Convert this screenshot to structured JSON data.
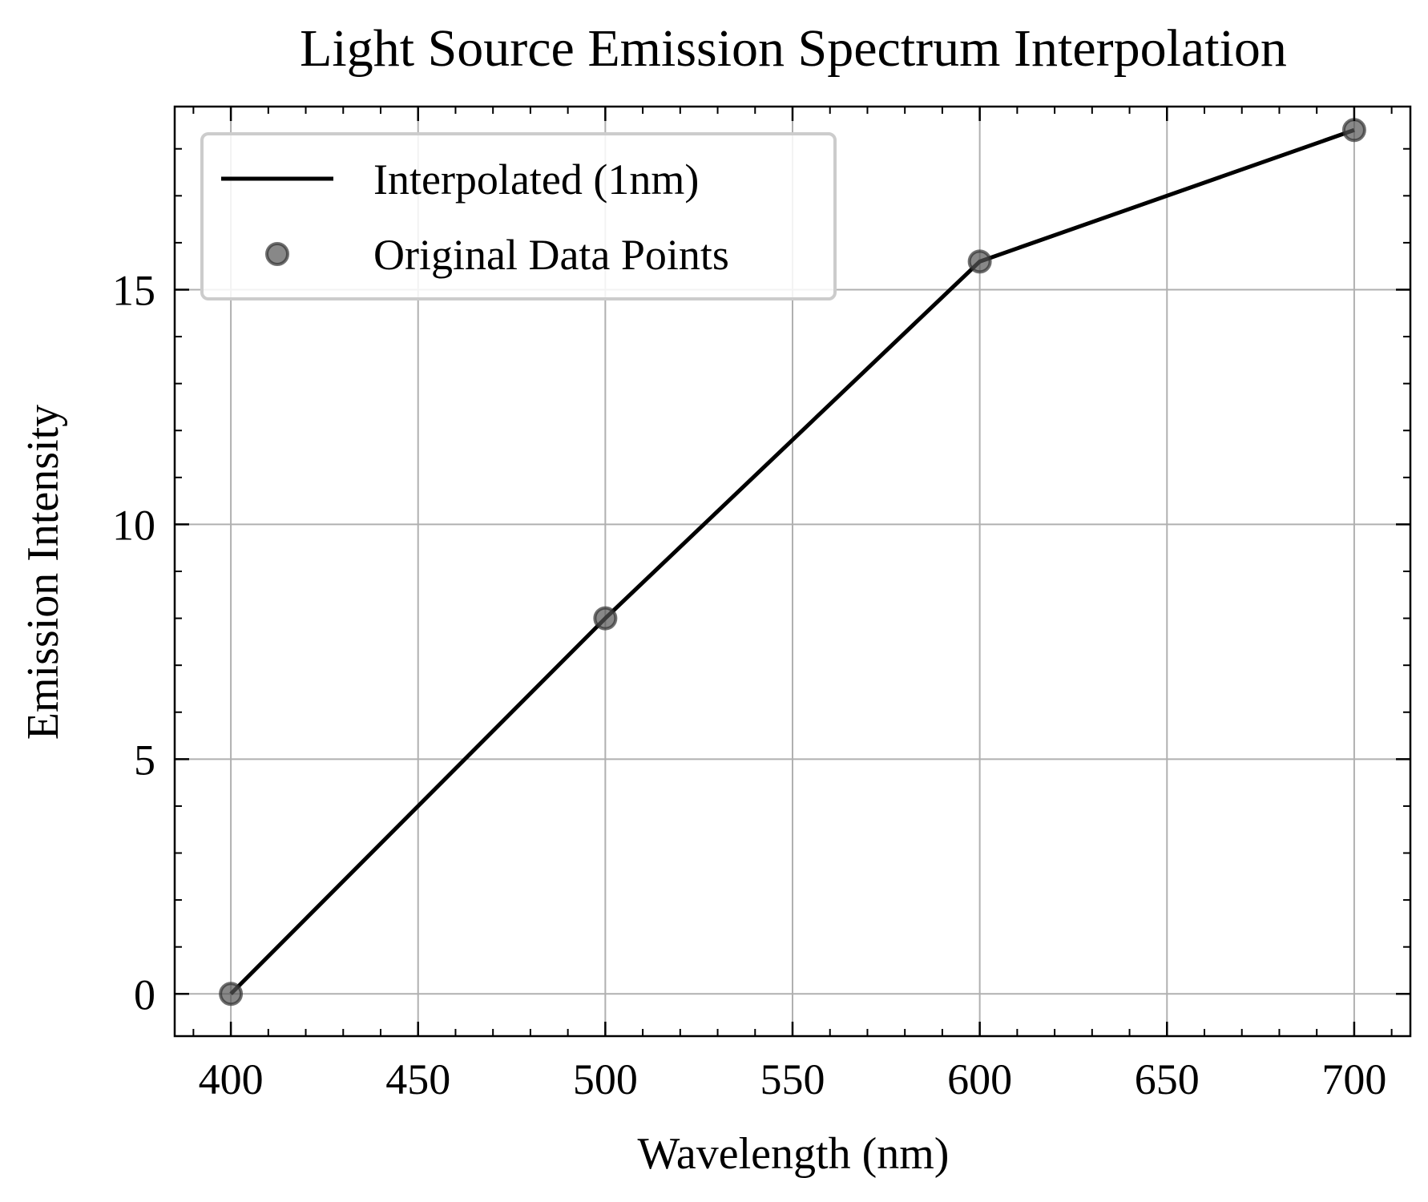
{
  "chart_data": {
    "type": "line",
    "title": "Light Source Emission Spectrum Interpolation",
    "xlabel": "Wavelength (nm)",
    "ylabel": "Emission Intensity",
    "xlim": [
      385,
      715
    ],
    "ylim": [
      -0.9,
      18.9
    ],
    "xticks": [
      400,
      450,
      500,
      550,
      600,
      650,
      700
    ],
    "yticks": [
      0,
      5,
      10,
      15
    ],
    "grid": true,
    "legend_position": "top-left",
    "series": [
      {
        "name": "Interpolated (1nm)",
        "kind": "line",
        "color": "#000000",
        "x": [
          400,
          500,
          600,
          700
        ],
        "y": [
          0.0,
          8.0,
          15.6,
          18.4
        ]
      },
      {
        "name": "Original Data Points",
        "kind": "scatter",
        "color": "#555555",
        "x": [
          400,
          500,
          600,
          700
        ],
        "y": [
          0.0,
          8.0,
          15.6,
          18.4
        ]
      }
    ]
  }
}
